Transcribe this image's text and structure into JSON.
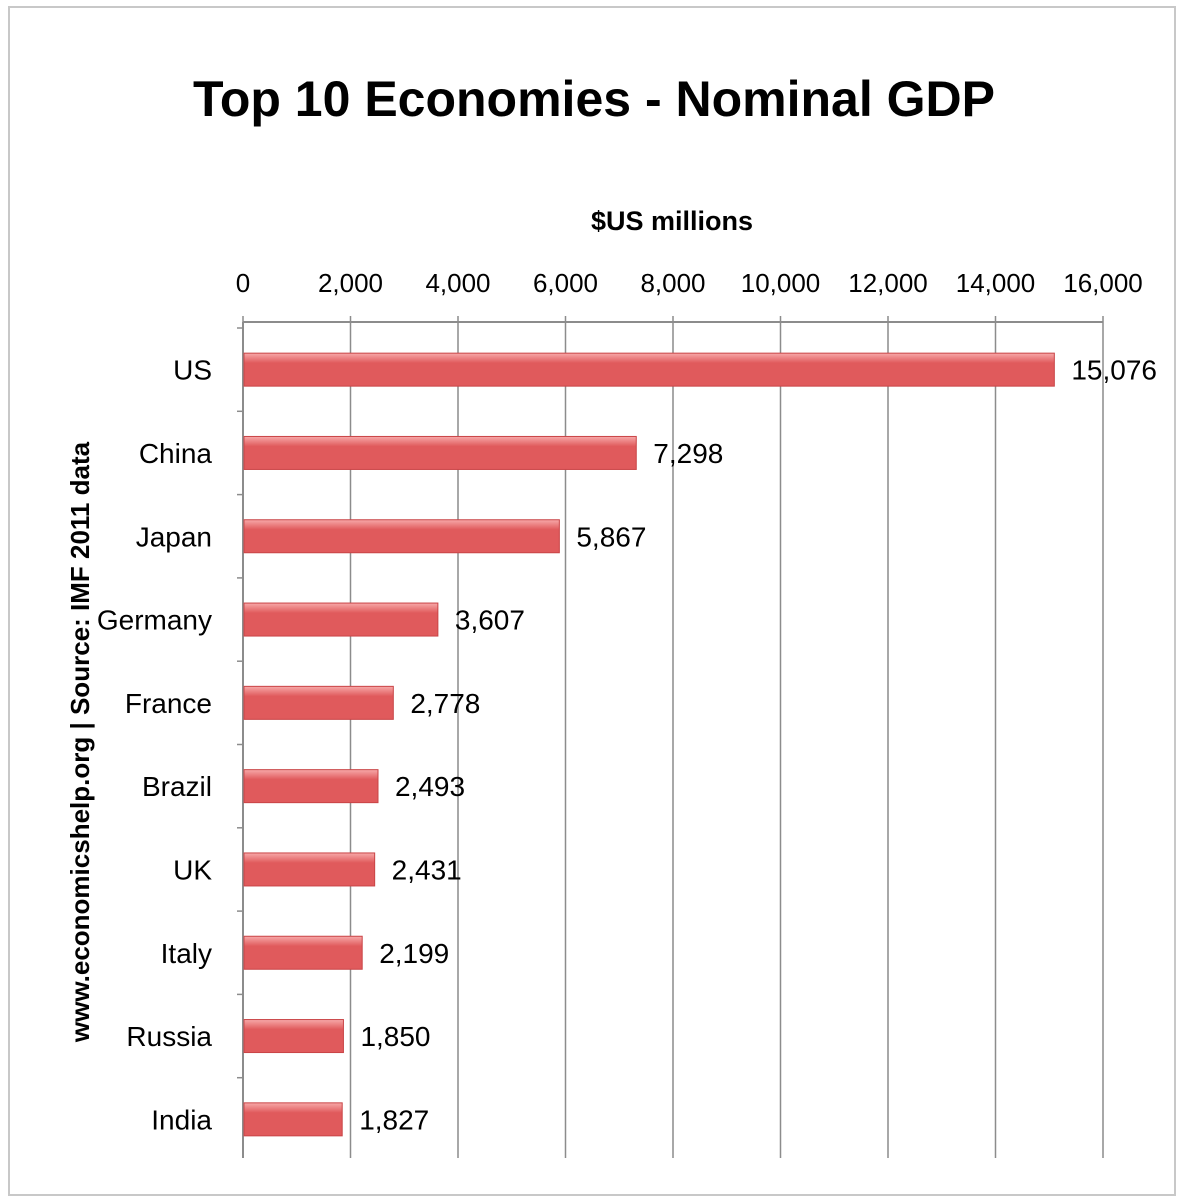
{
  "chart_data": {
    "type": "bar",
    "orientation": "horizontal",
    "title": "Top 10 Economies - Nominal GDP",
    "xlabel": "$US millions",
    "ylabel": "",
    "side_note": "www.economicshelp.org  |  Source: IMF 2011 data",
    "categories": [
      "US",
      "China",
      "Japan",
      "Germany",
      "France",
      "Brazil",
      "UK",
      "Italy",
      "Russia",
      "India"
    ],
    "values": [
      15076,
      7298,
      5867,
      3607,
      2778,
      2493,
      2431,
      2199,
      1850,
      1827
    ],
    "value_labels": [
      "15,076",
      "7,298",
      "5,867",
      "3,607",
      "2,778",
      "2,493",
      "2,431",
      "2,199",
      "1,850",
      "1,827"
    ],
    "xlim": [
      0,
      16000
    ],
    "xticks": [
      0,
      2000,
      4000,
      6000,
      8000,
      10000,
      12000,
      14000,
      16000
    ],
    "xtick_labels": [
      "0",
      "2,000",
      "4,000",
      "6,000",
      "8,000",
      "10,000",
      "12,000",
      "14,000",
      "16,000"
    ],
    "x_axis_position": "top",
    "grid": true,
    "legend": "none",
    "bar_color": "#e05a5c",
    "bar_highlight_color": "#f7a9a9",
    "grid_color": "#8c8c8c"
  }
}
